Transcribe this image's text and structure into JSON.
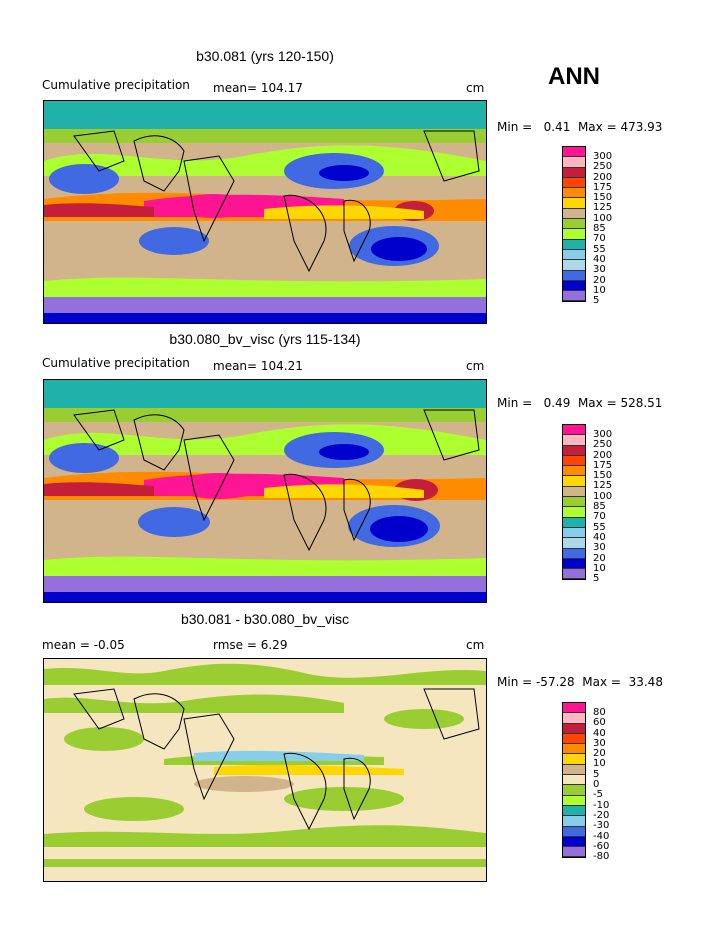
{
  "season": "ANN",
  "panels": [
    {
      "title": "b30.081 (yrs 120-150)",
      "left_label": "Cumulative precipitation",
      "mean_label": "mean= 104.17",
      "units": "cm",
      "minmax": "Min =   0.41  Max = 473.93",
      "colorbar": {
        "ticks": [
          "300",
          "250",
          "200",
          "175",
          "150",
          "125",
          "100",
          "85",
          "70",
          "55",
          "40",
          "30",
          "20",
          "10",
          "5"
        ],
        "colors": [
          "#ff1493",
          "#ffb6c1",
          "#c41e3a",
          "#ff4500",
          "#ff8c00",
          "#ffd700",
          "#d2b48c",
          "#9acd32",
          "#adff2f",
          "#20b2aa",
          "#87ceeb",
          "#add8e6",
          "#4169e1",
          "#0000cd",
          "#9370db"
        ]
      }
    },
    {
      "title": "b30.080_bv_visc (yrs 115-134)",
      "left_label": "Cumulative precipitation",
      "mean_label": "mean= 104.21",
      "units": "cm",
      "minmax": "Min =   0.49  Max = 528.51",
      "colorbar": {
        "ticks": [
          "300",
          "250",
          "200",
          "175",
          "150",
          "125",
          "100",
          "85",
          "70",
          "55",
          "40",
          "30",
          "20",
          "10",
          "5"
        ],
        "colors": [
          "#ff1493",
          "#ffb6c1",
          "#c41e3a",
          "#ff4500",
          "#ff8c00",
          "#ffd700",
          "#d2b48c",
          "#9acd32",
          "#adff2f",
          "#20b2aa",
          "#87ceeb",
          "#add8e6",
          "#4169e1",
          "#0000cd",
          "#9370db"
        ]
      }
    },
    {
      "title": "b30.081 - b30.080_bv_visc",
      "left_label": "mean =   -0.05",
      "mean_label": "rmse =    6.29",
      "units": "cm",
      "minmax": "Min = -57.28  Max =  33.48",
      "colorbar": {
        "ticks": [
          "80",
          "60",
          "40",
          "30",
          "20",
          "10",
          "5",
          "0",
          "-5",
          "-10",
          "-20",
          "-30",
          "-40",
          "-60",
          "-80"
        ],
        "colors": [
          "#ff1493",
          "#ffb6c1",
          "#c41e3a",
          "#ff4500",
          "#ff8c00",
          "#ffd700",
          "#d2b48c",
          "#f5e6c0",
          "#9acd32",
          "#adff2f",
          "#20b2aa",
          "#87ceeb",
          "#4169e1",
          "#0000cd",
          "#9370db"
        ]
      }
    }
  ]
}
